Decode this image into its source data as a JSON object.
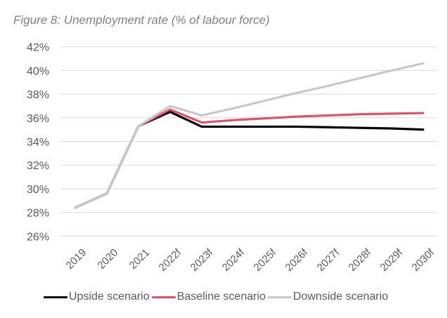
{
  "title": "Figure 8: Unemployment rate (% of labour force)",
  "chart_data": {
    "type": "line",
    "title": "Figure 8: Unemployment rate (% of labour force)",
    "xlabel": "",
    "ylabel": "",
    "ylim": [
      26,
      42
    ],
    "yticks": [
      26,
      28,
      30,
      32,
      34,
      36,
      38,
      40,
      42
    ],
    "ytick_labels": [
      "26%",
      "28%",
      "30%",
      "32%",
      "34%",
      "36%",
      "38%",
      "40%",
      "42%"
    ],
    "grid": true,
    "legend_position": "bottom",
    "categories": [
      "2019",
      "2020",
      "2021",
      "2022f",
      "2023f",
      "2024f",
      "2025f",
      "2026f",
      "2027f",
      "2028f",
      "2029f",
      "2030f"
    ],
    "series": [
      {
        "name": "Upside scenario",
        "color": "#000000",
        "values": [
          28.4,
          29.6,
          35.3,
          36.5,
          35.25,
          35.25,
          35.25,
          35.25,
          35.2,
          35.15,
          35.1,
          35.0
        ]
      },
      {
        "name": "Baseline scenario",
        "color": "#e0506a",
        "values": [
          28.4,
          29.6,
          35.3,
          36.7,
          35.6,
          35.8,
          35.95,
          36.1,
          36.2,
          36.3,
          36.35,
          36.4
        ]
      },
      {
        "name": "Downside scenario",
        "color": "#c8c8c8",
        "values": [
          28.4,
          29.6,
          35.3,
          37.0,
          36.2,
          36.8,
          37.45,
          38.1,
          38.7,
          39.35,
          40.0,
          40.6
        ]
      }
    ]
  }
}
